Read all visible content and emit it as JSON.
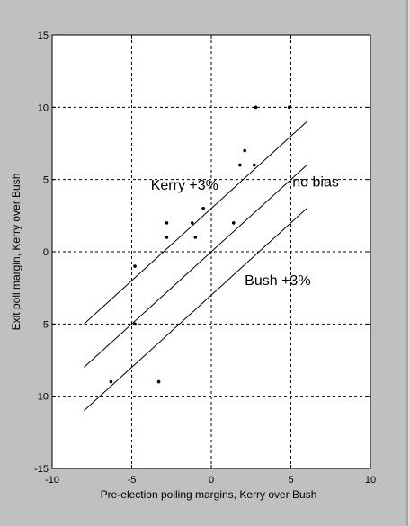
{
  "chart_data": {
    "type": "scatter",
    "xlabel": "Pre-election polling margins, Kerry over Bush",
    "ylabel": "Exit poll margin, Kerry over Bush",
    "xlim": [
      -10,
      10
    ],
    "ylim": [
      -15,
      15
    ],
    "xticks": [
      -10,
      -5,
      0,
      5,
      10
    ],
    "yticks": [
      -15,
      -10,
      -5,
      0,
      5,
      10,
      15
    ],
    "xtick_labels": [
      "-10",
      "-5",
      "0",
      "5",
      "10"
    ],
    "ytick_labels": [
      "-15",
      "-10",
      "-5",
      "0",
      "5",
      "10",
      "15"
    ],
    "grid": true,
    "points": [
      {
        "x": -6.3,
        "y": -9
      },
      {
        "x": -4.8,
        "y": -1
      },
      {
        "x": -4.8,
        "y": -5
      },
      {
        "x": -3.3,
        "y": -9
      },
      {
        "x": -2.8,
        "y": 2
      },
      {
        "x": -2.8,
        "y": 1
      },
      {
        "x": -1.2,
        "y": 2
      },
      {
        "x": -1.0,
        "y": 1
      },
      {
        "x": -0.5,
        "y": 3
      },
      {
        "x": 1.4,
        "y": 2
      },
      {
        "x": 1.8,
        "y": 6
      },
      {
        "x": 2.1,
        "y": 7
      },
      {
        "x": 2.7,
        "y": 6
      },
      {
        "x": 2.8,
        "y": 10
      },
      {
        "x": 4.9,
        "y": 10
      }
    ],
    "lines": [
      {
        "label": "Kerry +3%",
        "x": [
          -8,
          6
        ],
        "y": [
          -5,
          9
        ]
      },
      {
        "label": "no bias",
        "x": [
          -8,
          6
        ],
        "y": [
          -8,
          6
        ]
      },
      {
        "label": "Bush +3%",
        "x": [
          -8,
          6
        ],
        "y": [
          -11,
          3
        ]
      }
    ],
    "annotations": [
      {
        "text": "Kerry +3%",
        "x": -3.8,
        "y": 4.3
      },
      {
        "text": "no bias",
        "x": 5.1,
        "y": 4.5
      },
      {
        "text": "Bush +3%",
        "x": 2.1,
        "y": -2.3
      }
    ],
    "colors": {
      "background": "#c0c0c0",
      "plot": "#ffffff",
      "ink": "#000000"
    }
  }
}
